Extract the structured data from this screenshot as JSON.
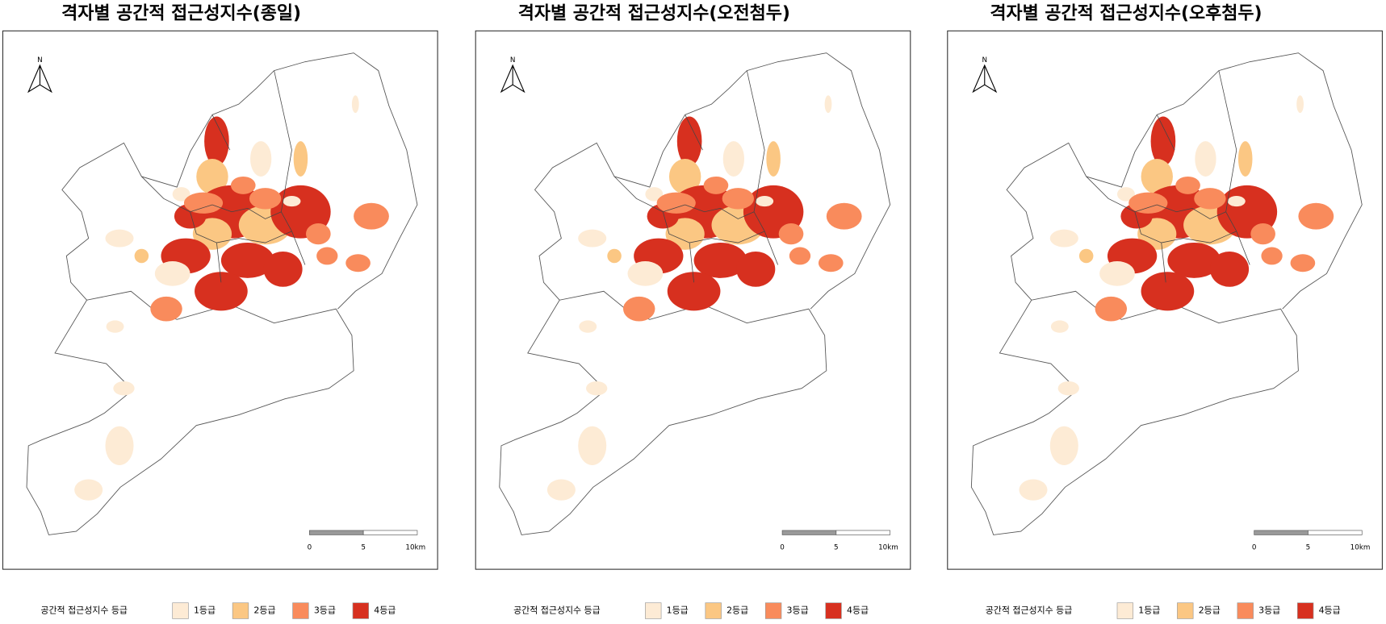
{
  "maps": [
    {
      "title": "격자별 공간적 접근성지수(종일)",
      "north": "N",
      "scale_labels": [
        "0",
        "5",
        "10km"
      ],
      "legend": {
        "title": "공간적 접근성지수 등급",
        "items": [
          {
            "label": "1등급",
            "color": "#fdebd5"
          },
          {
            "label": "2등급",
            "color": "#fbc783"
          },
          {
            "label": "3등급",
            "color": "#f98b5c"
          },
          {
            "label": "4등급",
            "color": "#d7301f"
          }
        ]
      }
    },
    {
      "title": "격자별 공간적 접근성지수(오전첨두)",
      "north": "N",
      "scale_labels": [
        "0",
        "5",
        "10km"
      ],
      "legend": {
        "title": "공간적 접근성지수 등급",
        "items": [
          {
            "label": "1등급",
            "color": "#fdebd5"
          },
          {
            "label": "2등급",
            "color": "#fbc783"
          },
          {
            "label": "3등급",
            "color": "#f98b5c"
          },
          {
            "label": "4등급",
            "color": "#d7301f"
          }
        ]
      }
    },
    {
      "title": "격자별 공간적 접근성지수(오후첨두)",
      "north": "N",
      "scale_labels": [
        "0",
        "5",
        "10km"
      ],
      "legend": {
        "title": "공간적 접근성지수 등급",
        "items": [
          {
            "label": "1등급",
            "color": "#fdebd5"
          },
          {
            "label": "2등급",
            "color": "#fbc783"
          },
          {
            "label": "3등급",
            "color": "#f98b5c"
          },
          {
            "label": "4등급",
            "color": "#d7301f"
          }
        ]
      }
    }
  ]
}
